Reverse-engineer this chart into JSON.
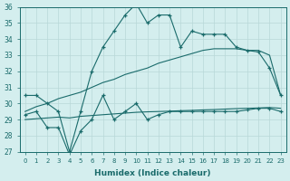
{
  "xlabel": "Humidex (Indice chaleur)",
  "x": [
    0,
    1,
    2,
    3,
    4,
    5,
    6,
    7,
    8,
    9,
    10,
    11,
    12,
    13,
    14,
    15,
    16,
    17,
    18,
    19,
    20,
    21,
    22,
    23
  ],
  "line1": [
    30.5,
    30.5,
    30.0,
    29.5,
    27.0,
    29.5,
    32.0,
    33.5,
    34.5,
    35.5,
    36.2,
    35.0,
    35.5,
    35.5,
    33.5,
    34.5,
    34.3,
    34.3,
    34.3,
    33.5,
    33.3,
    33.2,
    32.2,
    30.5
  ],
  "line2": [
    29.3,
    29.5,
    28.5,
    28.5,
    26.8,
    28.3,
    29.0,
    30.5,
    29.0,
    29.5,
    30.0,
    29.0,
    29.3,
    29.5,
    29.5,
    29.5,
    29.5,
    29.5,
    29.5,
    29.5,
    29.6,
    29.7,
    29.7,
    29.5
  ],
  "reg1": [
    29.5,
    29.8,
    30.0,
    30.3,
    30.5,
    30.7,
    31.0,
    31.3,
    31.5,
    31.8,
    32.0,
    32.2,
    32.5,
    32.7,
    32.9,
    33.1,
    33.3,
    33.4,
    33.4,
    33.4,
    33.3,
    33.3,
    33.0,
    30.5
  ],
  "reg2": [
    29.0,
    29.05,
    29.1,
    29.15,
    29.1,
    29.2,
    29.25,
    29.3,
    29.35,
    29.4,
    29.45,
    29.48,
    29.5,
    29.52,
    29.55,
    29.57,
    29.6,
    29.62,
    29.65,
    29.68,
    29.7,
    29.72,
    29.75,
    29.7
  ],
  "ylim": [
    27,
    36
  ],
  "yticks": [
    27,
    28,
    29,
    30,
    31,
    32,
    33,
    34,
    35,
    36
  ],
  "bg_color": "#d4eeee",
  "line_color": "#1a6b6b",
  "grid_color": "#b8d8d8"
}
